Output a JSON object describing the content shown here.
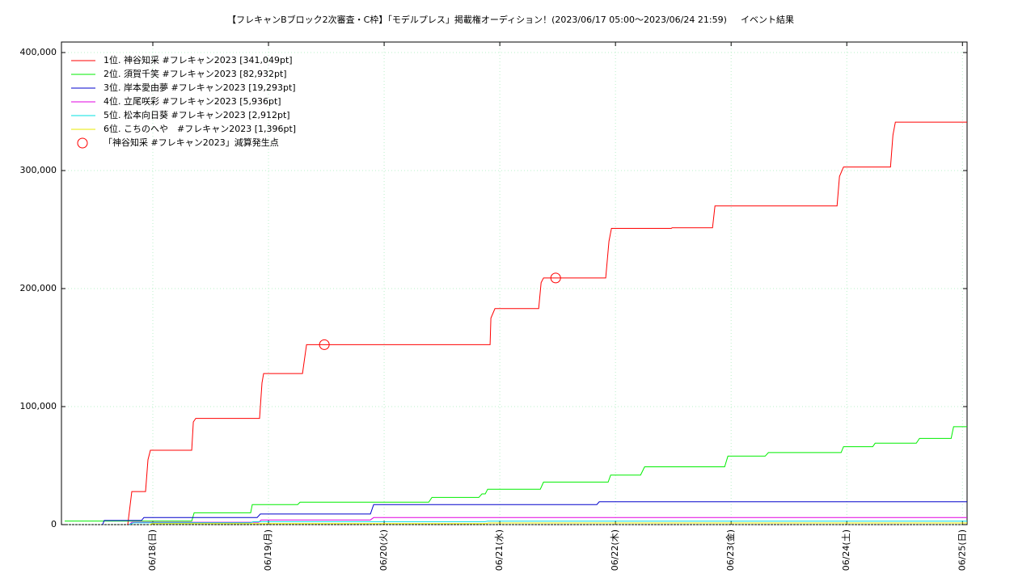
{
  "chart_data": {
    "type": "line",
    "title": "【フレキャンBブロック2次審査・C枠】「モデルプレス」掲載権オーディション！(2023/06/17 05:00〜2023/06/24 21:59)",
    "subtitle": "イベント結果",
    "xlim": [
      17.21,
      25.04
    ],
    "xticks": [
      {
        "value": 18,
        "label": "06/18(日)"
      },
      {
        "value": 19,
        "label": "06/19(月)"
      },
      {
        "value": 20,
        "label": "06/20(火)"
      },
      {
        "value": 21,
        "label": "06/21(水)"
      },
      {
        "value": 22,
        "label": "06/22(木)"
      },
      {
        "value": 23,
        "label": "06/23(金)"
      },
      {
        "value": 24,
        "label": "06/24(土)"
      },
      {
        "value": 25,
        "label": "06/25(日)"
      }
    ],
    "ylim": [
      0,
      400000
    ],
    "yticks": [
      {
        "value": 0,
        "label": "0"
      },
      {
        "value": 100000,
        "label": "100,000"
      },
      {
        "value": 200000,
        "label": "200,000"
      },
      {
        "value": 300000,
        "label": "300,000"
      },
      {
        "value": 400000,
        "label": "400,000"
      }
    ],
    "grid": true,
    "legend": "top-left",
    "series": [
      {
        "name": "1位. 神谷知采 #フレキャン2023 [341,049pt]",
        "color": "#ff0000",
        "x": [
          17.783,
          17.818,
          17.937,
          17.958,
          17.979,
          18.336,
          18.35,
          18.371,
          18.923,
          18.944,
          18.958,
          19.294,
          19.329,
          20.916,
          20.923,
          20.958,
          21.336,
          21.357,
          21.378,
          21.916,
          21.944,
          21.965,
          22.483,
          22.49,
          22.839,
          22.86,
          23.916,
          23.937,
          23.972,
          24.378,
          24.399,
          24.42,
          25.04
        ],
        "values": [
          0,
          28000,
          28000,
          55000,
          63000,
          63000,
          87000,
          90000,
          90000,
          120000,
          128000,
          128000,
          152500,
          152500,
          175000,
          183000,
          183000,
          205000,
          209000,
          209000,
          240000,
          251000,
          251000,
          251500,
          251500,
          270000,
          270000,
          295000,
          303000,
          303000,
          330000,
          341049,
          341049
        ]
      },
      {
        "name": "2位. 須賀千笑 #フレキャン2023 [82,932pt]",
        "color": "#00ee00",
        "x": [
          17.238,
          18.336,
          18.357,
          18.846,
          18.86,
          19.252,
          19.273,
          20.385,
          20.413,
          20.818,
          20.846,
          20.874,
          20.895,
          21.35,
          21.378,
          21.937,
          21.958,
          22.217,
          22.252,
          22.944,
          22.972,
          23.294,
          23.322,
          23.951,
          23.972,
          24.224,
          24.245,
          24.601,
          24.629,
          24.902,
          24.923,
          25.04
        ],
        "values": [
          3000,
          3000,
          10000,
          10000,
          17000,
          17000,
          19000,
          19000,
          23000,
          23000,
          26000,
          26000,
          30000,
          30000,
          36000,
          36000,
          42000,
          42000,
          49000,
          49000,
          58000,
          58000,
          61000,
          61000,
          66000,
          66000,
          69000,
          69000,
          73000,
          73000,
          82932,
          82932
        ]
      },
      {
        "name": "3位. 岸本愛由夢 #フレキャン2023 [19,293pt]",
        "color": "#0000cc",
        "x": [
          17.566,
          17.58,
          17.902,
          17.923,
          18.902,
          18.93,
          19.881,
          19.909,
          21.839,
          21.86,
          25.04
        ],
        "values": [
          0,
          3500,
          3500,
          6000,
          6000,
          9000,
          9000,
          17000,
          17000,
          19293,
          19293
        ]
      },
      {
        "name": "4位. 立尾咲彩 #フレキャン2023 [5,936pt]",
        "color": "#e000e0",
        "x": [
          17.797,
          17.818,
          18.916,
          18.937,
          19.881,
          19.909,
          25.04
        ],
        "values": [
          0,
          2000,
          2000,
          4000,
          4000,
          5936,
          5936
        ]
      },
      {
        "name": "5位. 松本向日葵 #フレキャン2023 [2,912pt]",
        "color": "#00e0e0",
        "x": [
          17.797,
          17.832,
          18.846,
          18.867,
          20.874,
          20.895,
          25.04
        ],
        "values": [
          0,
          1500,
          1500,
          2500,
          2500,
          2912,
          2912
        ]
      },
      {
        "name": "6位. こちのへや　#フレキャン2023 [1,396pt]",
        "color": "#e8e800",
        "x": [
          17.972,
          17.993,
          20.874,
          20.902,
          25.04
        ],
        "values": [
          0,
          800,
          800,
          1396,
          1396
        ]
      }
    ],
    "markers": {
      "name": "「神谷知采 #フレキャン2023」減算発生点",
      "color": "#ff0000",
      "x": [
        19.483,
        21.483
      ],
      "values": [
        152500,
        209000
      ]
    }
  }
}
